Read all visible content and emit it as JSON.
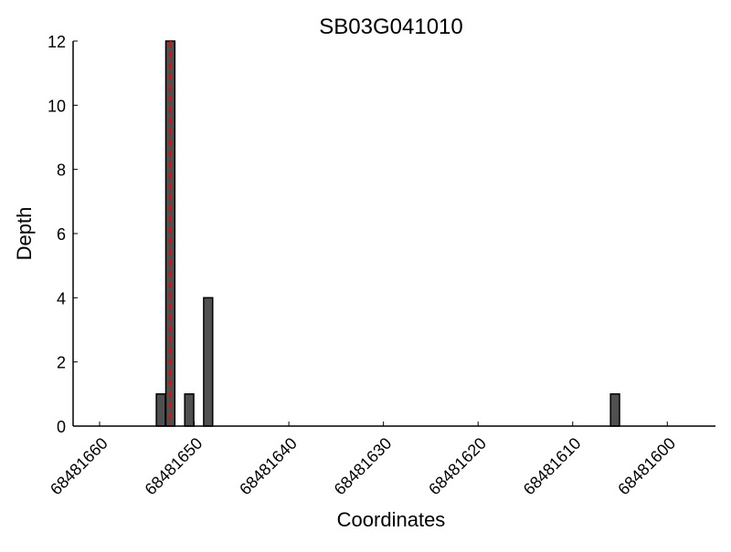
{
  "chart_data": {
    "type": "bar",
    "title": "SB03G041010",
    "xlabel": "Coordinates",
    "ylabel": "Depth",
    "x_reversed": true,
    "xlim": [
      68481662.8,
      68481595.2
    ],
    "ylim": [
      0,
      12
    ],
    "x_ticks": [
      68481660,
      68481650,
      68481640,
      68481630,
      68481620,
      68481610,
      68481600
    ],
    "y_ticks": [
      0,
      2,
      4,
      6,
      8,
      10,
      12
    ],
    "grid": false,
    "bars": [
      {
        "x": 68481654,
        "value": 1
      },
      {
        "x": 68481653,
        "value": 12
      },
      {
        "x": 68481651,
        "value": 1
      },
      {
        "x": 68481649,
        "value": 4
      },
      {
        "x": 68481606,
        "value": 1
      }
    ],
    "bar_width": 0.95,
    "bar_color": "#505050",
    "marker_line": {
      "x": 68481652.5,
      "color": "#ff0000",
      "style": "dashed"
    }
  }
}
